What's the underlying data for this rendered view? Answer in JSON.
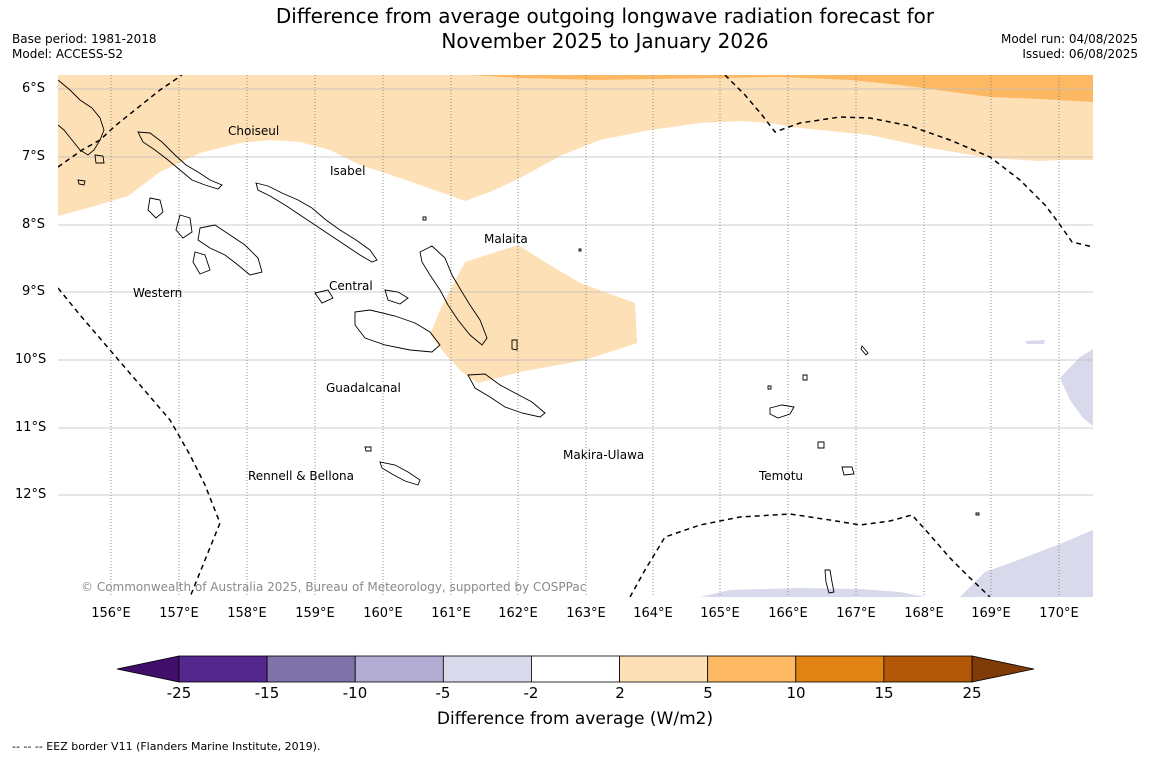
{
  "title_line1": "Difference from average outgoing longwave radiation forecast for",
  "title_line2": "November 2025 to January 2026",
  "base_period": "Base period: 1981-2018",
  "model": "Model: ACCESS-S2",
  "model_run": "Model run: 04/08/2025",
  "issued": "Issued: 06/08/2025",
  "lat_labels": [
    "6°S",
    "7°S",
    "8°S",
    "9°S",
    "10°S",
    "11°S",
    "12°S"
  ],
  "lon_labels": [
    "156°E",
    "157°E",
    "158°E",
    "159°E",
    "160°E",
    "161°E",
    "162°E",
    "163°E",
    "164°E",
    "165°E",
    "166°E",
    "167°E",
    "168°E",
    "169°E",
    "170°E"
  ],
  "regions": {
    "choiseul": "Choiseul",
    "isabel": "Isabel",
    "malaita": "Malaita",
    "western": "Western",
    "central": "Central",
    "guadalcanal": "Guadalcanal",
    "makira": "Makira-Ulawa",
    "rennell": "Rennell & Bellona",
    "temotu": "Temotu"
  },
  "copyright": "© Commonwealth of Australia 2025, Bureau of Meteorology, supported by COSPPac",
  "colorbar": {
    "ticks": [
      "-25",
      "-15",
      "-10",
      "-5",
      "-2",
      "2",
      "5",
      "10",
      "15",
      "25"
    ],
    "colors": [
      "#3f0f6b",
      "#54278f",
      "#8073ac",
      "#b2abd2",
      "#d8daeb",
      "#ffffff",
      "#fee0b6",
      "#fdb863",
      "#e08214",
      "#b35806",
      "#7f3b08"
    ],
    "label": "Difference from average (W/m2)"
  },
  "footnote": "--  --  -- EEZ border V11 (Flanders Marine Institute, 2019).",
  "icons": {
    "eez_line": "dashed-line",
    "grid": "dotted-meridians"
  }
}
